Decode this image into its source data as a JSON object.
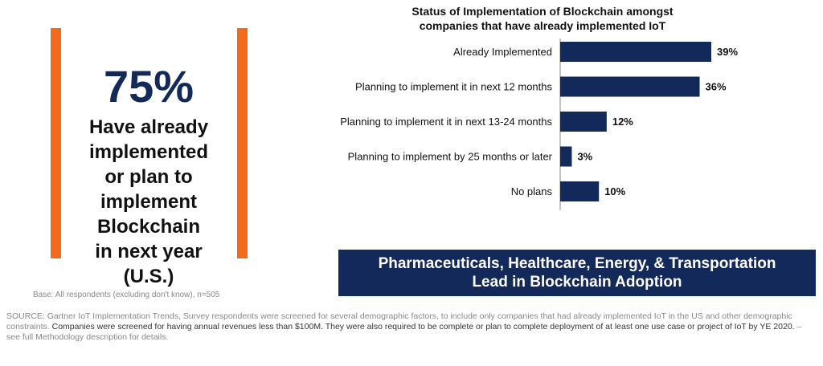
{
  "highlight": {
    "percent": "75%",
    "description": "Have already\nimplemented\nor plan to\nimplement\nBlockchain\nin next year\n(U.S.)"
  },
  "base_note": "Base: All respondents (excluding don't know), n=505",
  "banner": "Pharmaceuticals, Healthcare, Energy, & Transportation\nLead in Blockchain Adoption",
  "source": {
    "part1": "SOURCE: Gartner IoT Implementation Trends, Survey respondents were screened for several demographic factors, to include only companies that had already implemented IoT in the US and other demographic constraints. ",
    "part2": "Companies were screened for having annual revenues less than $100M. They were also required to be complete or plan to complete deployment of at least one use case or project of IoT by YE 2020.",
    "part3": " – see full Methodology description for details."
  },
  "colors": {
    "bar": "#13295a",
    "accent": "#f26a1b",
    "banner": "#13295a"
  },
  "chart_data": {
    "type": "bar",
    "orientation": "horizontal",
    "title": "Status of Implementation of Blockchain amongst\ncompanies that have already implemented IoT",
    "categories": [
      "Already Implemented",
      "Planning to implement it in next 12 months",
      "Planning to implement it in next 13-24 months",
      "Planning to implement by 25 months or later",
      "No plans"
    ],
    "values": [
      39,
      36,
      12,
      3,
      10
    ],
    "value_labels": [
      "39%",
      "36%",
      "12%",
      "3%",
      "10%"
    ],
    "unit": "%"
  }
}
